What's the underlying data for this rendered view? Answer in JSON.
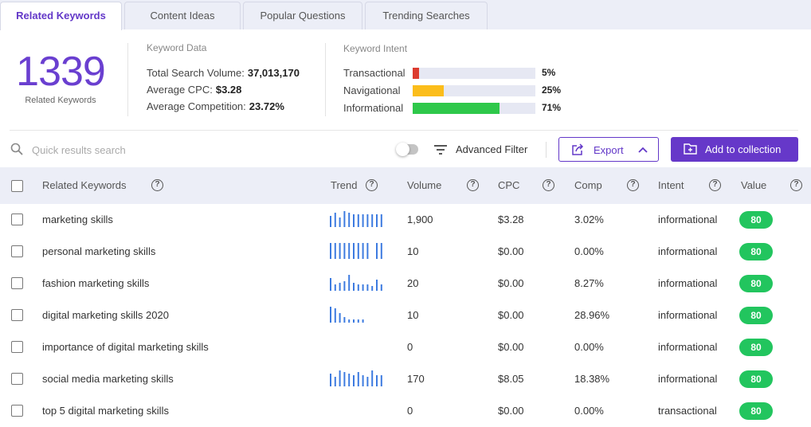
{
  "tabs": [
    {
      "label": "Related Keywords",
      "active": true
    },
    {
      "label": "Content Ideas",
      "active": false
    },
    {
      "label": "Popular Questions",
      "active": false
    },
    {
      "label": "Trending Searches",
      "active": false
    }
  ],
  "summary": {
    "count": "1339",
    "count_label": "Related Keywords",
    "keyword_data": {
      "title": "Keyword Data",
      "rows": [
        {
          "label": "Total Search Volume:",
          "value": "37,013,170"
        },
        {
          "label": "Average CPC:",
          "value": "$3.28"
        },
        {
          "label": "Average Competition:",
          "value": "23.72%"
        }
      ]
    },
    "keyword_intent": {
      "title": "Keyword Intent",
      "rows": [
        {
          "label": "Transactional",
          "pct": "5%",
          "fraction": 0.05,
          "color": "#dc3b2f"
        },
        {
          "label": "Navigational",
          "pct": "25%",
          "fraction": 0.25,
          "color": "#fbbd1b"
        },
        {
          "label": "Informational",
          "pct": "71%",
          "fraction": 0.71,
          "color": "#2ec84a"
        }
      ]
    }
  },
  "toolbar": {
    "search_placeholder": "Quick results search",
    "filter_label": "Advanced Filter",
    "export_label": "Export",
    "collection_label": "Add to collection",
    "accent": "#6638c9"
  },
  "table": {
    "headers": {
      "keyword": "Related Keywords",
      "trend": "Trend",
      "volume": "Volume",
      "cpc": "CPC",
      "comp": "Comp",
      "intent": "Intent",
      "value": "Value"
    },
    "help_glyph": "?",
    "rows": [
      {
        "keyword": "marketing skills",
        "volume": "1,900",
        "cpc": "$3.28",
        "comp": "3.02%",
        "intent": "informational",
        "value": "80",
        "trend": [
          0.7,
          0.9,
          0.6,
          1.0,
          0.9,
          0.8,
          0.8,
          0.8,
          0.8,
          0.8,
          0.8,
          0.8
        ]
      },
      {
        "keyword": "personal marketing skills",
        "volume": "10",
        "cpc": "$0.00",
        "comp": "0.00%",
        "intent": "informational",
        "value": "80",
        "trend": [
          1,
          1,
          1,
          1,
          1,
          1,
          1,
          1,
          1,
          0,
          1,
          1
        ]
      },
      {
        "keyword": "fashion marketing skills",
        "volume": "20",
        "cpc": "$0.00",
        "comp": "8.27%",
        "intent": "informational",
        "value": "80",
        "trend": [
          0.8,
          0.4,
          0.5,
          0.6,
          1.0,
          0.5,
          0.4,
          0.4,
          0.4,
          0.3,
          0.7,
          0.4
        ]
      },
      {
        "keyword": "digital marketing skills 2020",
        "volume": "10",
        "cpc": "$0.00",
        "comp": "28.96%",
        "intent": "informational",
        "value": "80",
        "trend": [
          1.0,
          0.9,
          0.6,
          0.35,
          0.2,
          0.2,
          0.2,
          0.2,
          0,
          0,
          0,
          0
        ]
      },
      {
        "keyword": "importance of digital marketing skills",
        "volume": "0",
        "cpc": "$0.00",
        "comp": "0.00%",
        "intent": "informational",
        "value": "80",
        "trend": []
      },
      {
        "keyword": "social media marketing skills",
        "volume": "170",
        "cpc": "$8.05",
        "comp": "18.38%",
        "intent": "informational",
        "value": "80",
        "trend": [
          0.8,
          0.6,
          1.0,
          0.9,
          0.8,
          0.7,
          0.9,
          0.7,
          0.6,
          1.0,
          0.7,
          0.7
        ]
      },
      {
        "keyword": "top 5 digital marketing skills",
        "volume": "0",
        "cpc": "$0.00",
        "comp": "0.00%",
        "intent": "transactional",
        "value": "80",
        "trend": []
      }
    ]
  }
}
